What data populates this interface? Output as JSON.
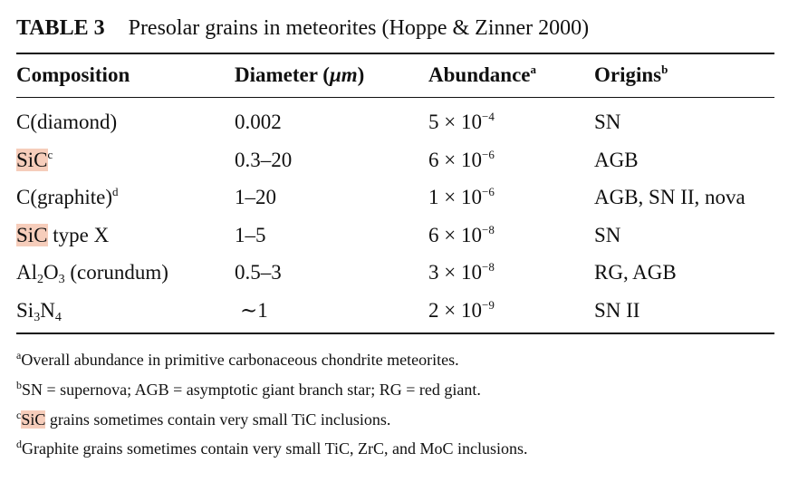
{
  "table": {
    "label": "TABLE 3",
    "caption": "Presolar grains in meteorites (Hoppe & Zinner 2000)",
    "headers": {
      "composition": "Composition",
      "diameter": "Diameter (",
      "diameter_unit": "μm",
      "diameter_close": ")",
      "abundance": "Abundance",
      "abundance_mark": "a",
      "origins": "Origins",
      "origins_mark": "b"
    },
    "rows": [
      {
        "composition": "C(diamond)",
        "diameter": "0.002",
        "abundance_mantissa": "5",
        "abundance_exp": "−4",
        "origins": "SN"
      },
      {
        "composition_hl": "SiC",
        "composition_mark": "c",
        "diameter": "0.3–20",
        "abundance_mantissa": "6",
        "abundance_exp": "−6",
        "origins": "AGB"
      },
      {
        "composition": "C(graphite)",
        "composition_mark": "d",
        "diameter": "1–20",
        "abundance_mantissa": "1",
        "abundance_exp": "−6",
        "origins": "AGB, SN II, nova"
      },
      {
        "composition_hl": "SiC",
        "composition_rest": " type X",
        "diameter": "1–5",
        "abundance_mantissa": "6",
        "abundance_exp": "−8",
        "origins": "SN"
      },
      {
        "composition_a": "Al",
        "composition_sub1": "2",
        "composition_b": "O",
        "composition_sub2": "3",
        "composition_c": " (corundum)",
        "diameter": "0.5–3",
        "abundance_mantissa": "3",
        "abundance_exp": "−8",
        "origins": "RG, AGB"
      },
      {
        "composition_a": "Si",
        "composition_sub1": "3",
        "composition_b": "N",
        "composition_sub2": "4",
        "diameter": "∼1",
        "abundance_mantissa": "2",
        "abundance_exp": "−9",
        "origins": "SN II"
      }
    ],
    "times": "×",
    "base": "10"
  },
  "footnotes": [
    {
      "mark": "a",
      "text": "Overall abundance in primitive carbonaceous chondrite meteorites."
    },
    {
      "mark": "b",
      "text": "SN = supernova; AGB = asymptotic giant branch star; RG = red giant."
    },
    {
      "mark": "c",
      "text_hl": "SiC",
      "text": " grains sometimes contain very small TiC inclusions."
    },
    {
      "mark": "d",
      "text": "Graphite grains sometimes contain very small TiC, ZrC, and MoC inclusions."
    }
  ],
  "colors": {
    "highlight": "#f6cdbb",
    "text": "#111111"
  }
}
